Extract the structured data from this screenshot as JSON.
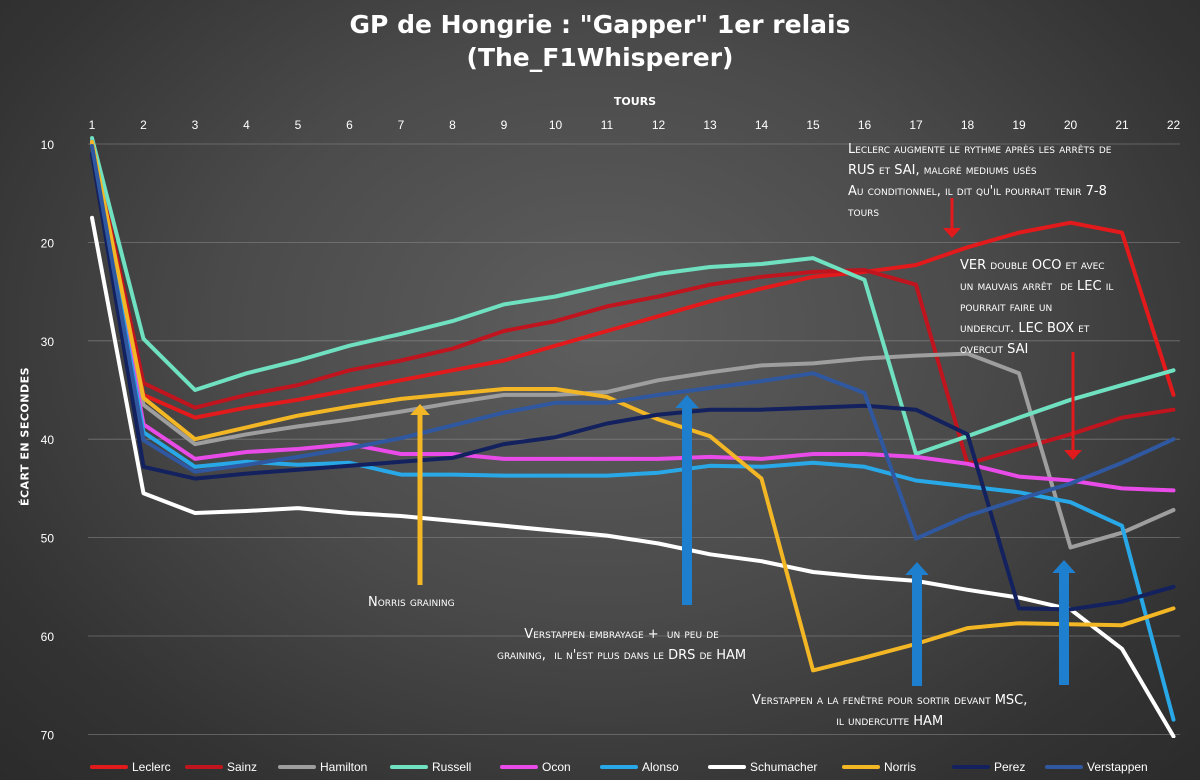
{
  "title_line1": "GP de Hongrie : \"Gapper\" 1er relais",
  "title_line2": "(The_F1Whisperer)",
  "chart_data": {
    "type": "line",
    "xlabel": "TOURS",
    "ylabel": "ÉCART EN SECONDES",
    "x": [
      1,
      2,
      3,
      4,
      5,
      6,
      7,
      8,
      9,
      10,
      11,
      12,
      13,
      14,
      15,
      16,
      17,
      18,
      19,
      20,
      21,
      22
    ],
    "ylim": [
      10,
      70
    ],
    "y_inverted": true,
    "yticks": [
      10,
      20,
      30,
      40,
      50,
      60,
      70
    ],
    "grid": true,
    "legend": "bottom",
    "series": [
      {
        "name": "Leclerc",
        "color": "#e31a1c",
        "values": [
          9.5,
          35.5,
          37.8,
          36.8,
          36.0,
          35.0,
          34.0,
          33.0,
          32.0,
          30.5,
          29.0,
          27.5,
          26.0,
          24.7,
          23.5,
          23.0,
          22.3,
          20.5,
          19.0,
          18.0,
          19.0,
          35.5
        ]
      },
      {
        "name": "Sainz",
        "color": "#c0141e",
        "values": [
          9.6,
          34.3,
          36.8,
          35.5,
          34.5,
          33.0,
          32.0,
          30.8,
          29.0,
          28.0,
          26.5,
          25.5,
          24.3,
          23.5,
          23.0,
          22.8,
          24.3,
          42.5,
          41.0,
          39.5,
          37.8,
          37.0
        ]
      },
      {
        "name": "Hamilton",
        "color": "#9e9e9e",
        "values": [
          9.7,
          36.5,
          40.5,
          39.5,
          38.7,
          38.0,
          37.2,
          36.3,
          35.5,
          35.5,
          35.2,
          34.0,
          33.2,
          32.5,
          32.3,
          31.8,
          31.5,
          31.3,
          33.3,
          51.0,
          49.5,
          47.2
        ]
      },
      {
        "name": "Russell",
        "color": "#6fe0c0",
        "values": [
          9.4,
          29.8,
          35.0,
          33.3,
          32.0,
          30.5,
          29.3,
          28.0,
          26.3,
          25.5,
          24.3,
          23.2,
          22.5,
          22.2,
          21.6,
          23.8,
          41.5,
          39.7,
          37.8,
          36.0,
          34.5,
          33.0
        ]
      },
      {
        "name": "Ocon",
        "color": "#e94be9",
        "values": [
          9.9,
          38.5,
          42.0,
          41.3,
          41.0,
          40.5,
          41.5,
          41.5,
          42.0,
          42.0,
          42.0,
          42.0,
          41.8,
          42.0,
          41.5,
          41.5,
          41.8,
          42.5,
          43.8,
          44.2,
          45.0,
          45.2
        ]
      },
      {
        "name": "Alonso",
        "color": "#29a8e8",
        "values": [
          9.8,
          39.3,
          42.8,
          42.3,
          42.6,
          42.4,
          43.6,
          43.6,
          43.7,
          43.7,
          43.7,
          43.4,
          42.7,
          42.8,
          42.4,
          42.8,
          44.2,
          44.8,
          45.4,
          46.4,
          48.8,
          68.5
        ]
      },
      {
        "name": "Schumacher",
        "color": "#ffffff",
        "values": [
          17.5,
          45.5,
          47.5,
          47.3,
          47.0,
          47.5,
          47.8,
          48.3,
          48.8,
          49.3,
          49.8,
          50.6,
          51.7,
          52.4,
          53.5,
          54.0,
          54.4,
          55.3,
          56.1,
          57.3,
          61.3,
          70.2
        ]
      },
      {
        "name": "Norris",
        "color": "#f3b624",
        "values": [
          9.8,
          35.8,
          40.0,
          38.8,
          37.6,
          36.7,
          35.9,
          35.4,
          34.9,
          34.9,
          35.7,
          38.0,
          39.7,
          44.0,
          63.5,
          62.2,
          60.8,
          59.2,
          58.7,
          58.8,
          58.9,
          57.2
        ]
      },
      {
        "name": "Perez",
        "color": "#13215e",
        "values": [
          11.0,
          42.8,
          44.0,
          43.5,
          43.1,
          42.7,
          42.3,
          41.9,
          40.5,
          39.8,
          38.4,
          37.5,
          37.0,
          37.0,
          36.8,
          36.6,
          37.0,
          39.5,
          57.2,
          57.3,
          56.5,
          55.0
        ]
      },
      {
        "name": "Verstappen",
        "color": "#2f58a0",
        "values": [
          10.2,
          40.1,
          43.3,
          42.6,
          41.8,
          40.9,
          39.9,
          38.6,
          37.3,
          36.3,
          36.3,
          35.5,
          34.8,
          34.1,
          33.3,
          35.3,
          50.1,
          47.8,
          46.1,
          44.5,
          42.4,
          40.0
        ]
      }
    ]
  },
  "annotations": {
    "leclerc": "Leclerc augmente le rythme après les arrêts de\nRUS et SAI, malgré mediums usés\nAu conditionnel, il dit qu'il pourrait tenir 7-8\ntours",
    "ver_double": "VER double OCO et avec\nun mauvais arrêt  de LEC il\npourrait faire un\nundercut. LEC BOX et\novercut SAI",
    "norris": "Norris graining",
    "verstappen_embrayage": "Verstappen embrayage +  un peu de\ngraining,  il n'est plus dans le DRS de HAM",
    "verstappen_fenetre": "Verstappen a la fenêtre pour sortir devant MSC,\nil undercutte HAM"
  },
  "colors": {
    "arrow_red": "#e31a1c",
    "arrow_yellow": "#f3b624",
    "arrow_blue": "#1f7fcf"
  }
}
